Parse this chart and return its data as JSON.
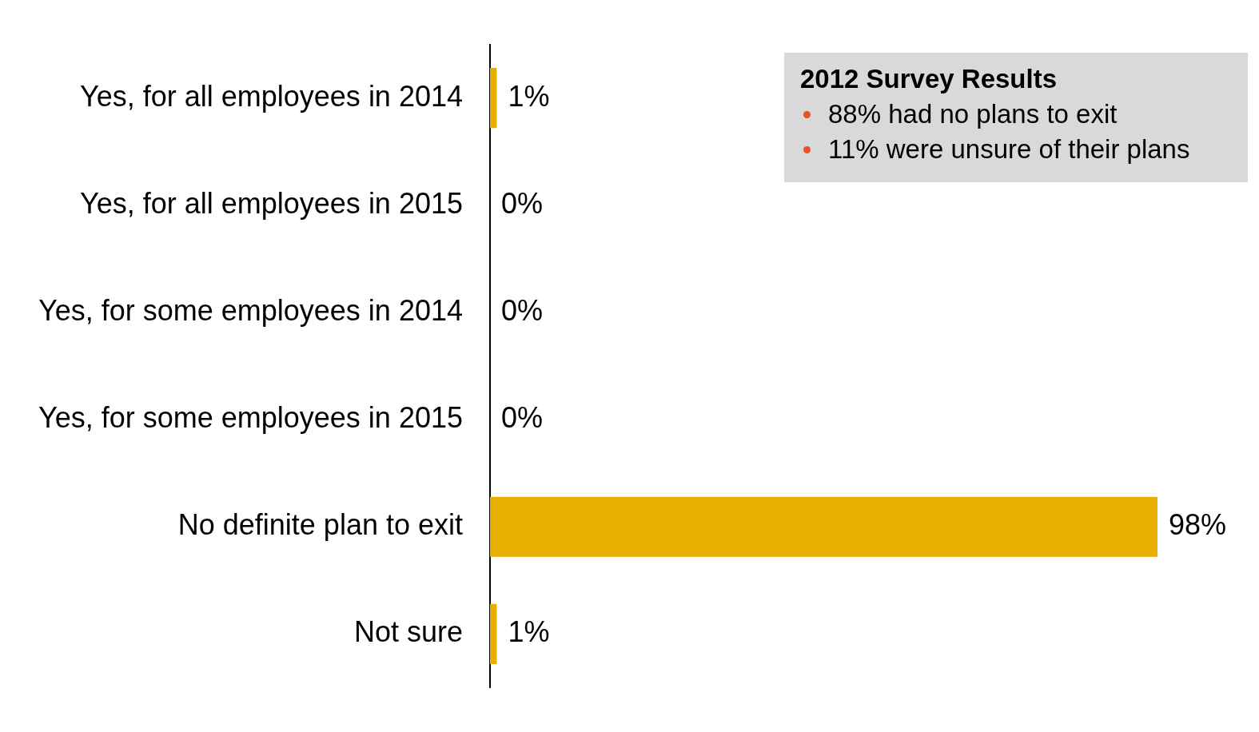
{
  "chart_data": {
    "type": "bar",
    "orientation": "horizontal",
    "categories": [
      "Yes, for all employees in 2014",
      "Yes, for all employees in 2015",
      "Yes, for some employees in 2014",
      "Yes, for some employees in 2015",
      "No definite plan to exit",
      "Not sure"
    ],
    "values": [
      1,
      0,
      0,
      0,
      98,
      1
    ],
    "value_labels": [
      "1%",
      "0%",
      "0%",
      "0%",
      "98%",
      "1%"
    ],
    "color": "#e8ae00",
    "grid": false,
    "legend": false,
    "annotations": [
      "2012 Survey Results",
      "88% had no plans to exit",
      "11% were unsure of their plans"
    ]
  }
}
